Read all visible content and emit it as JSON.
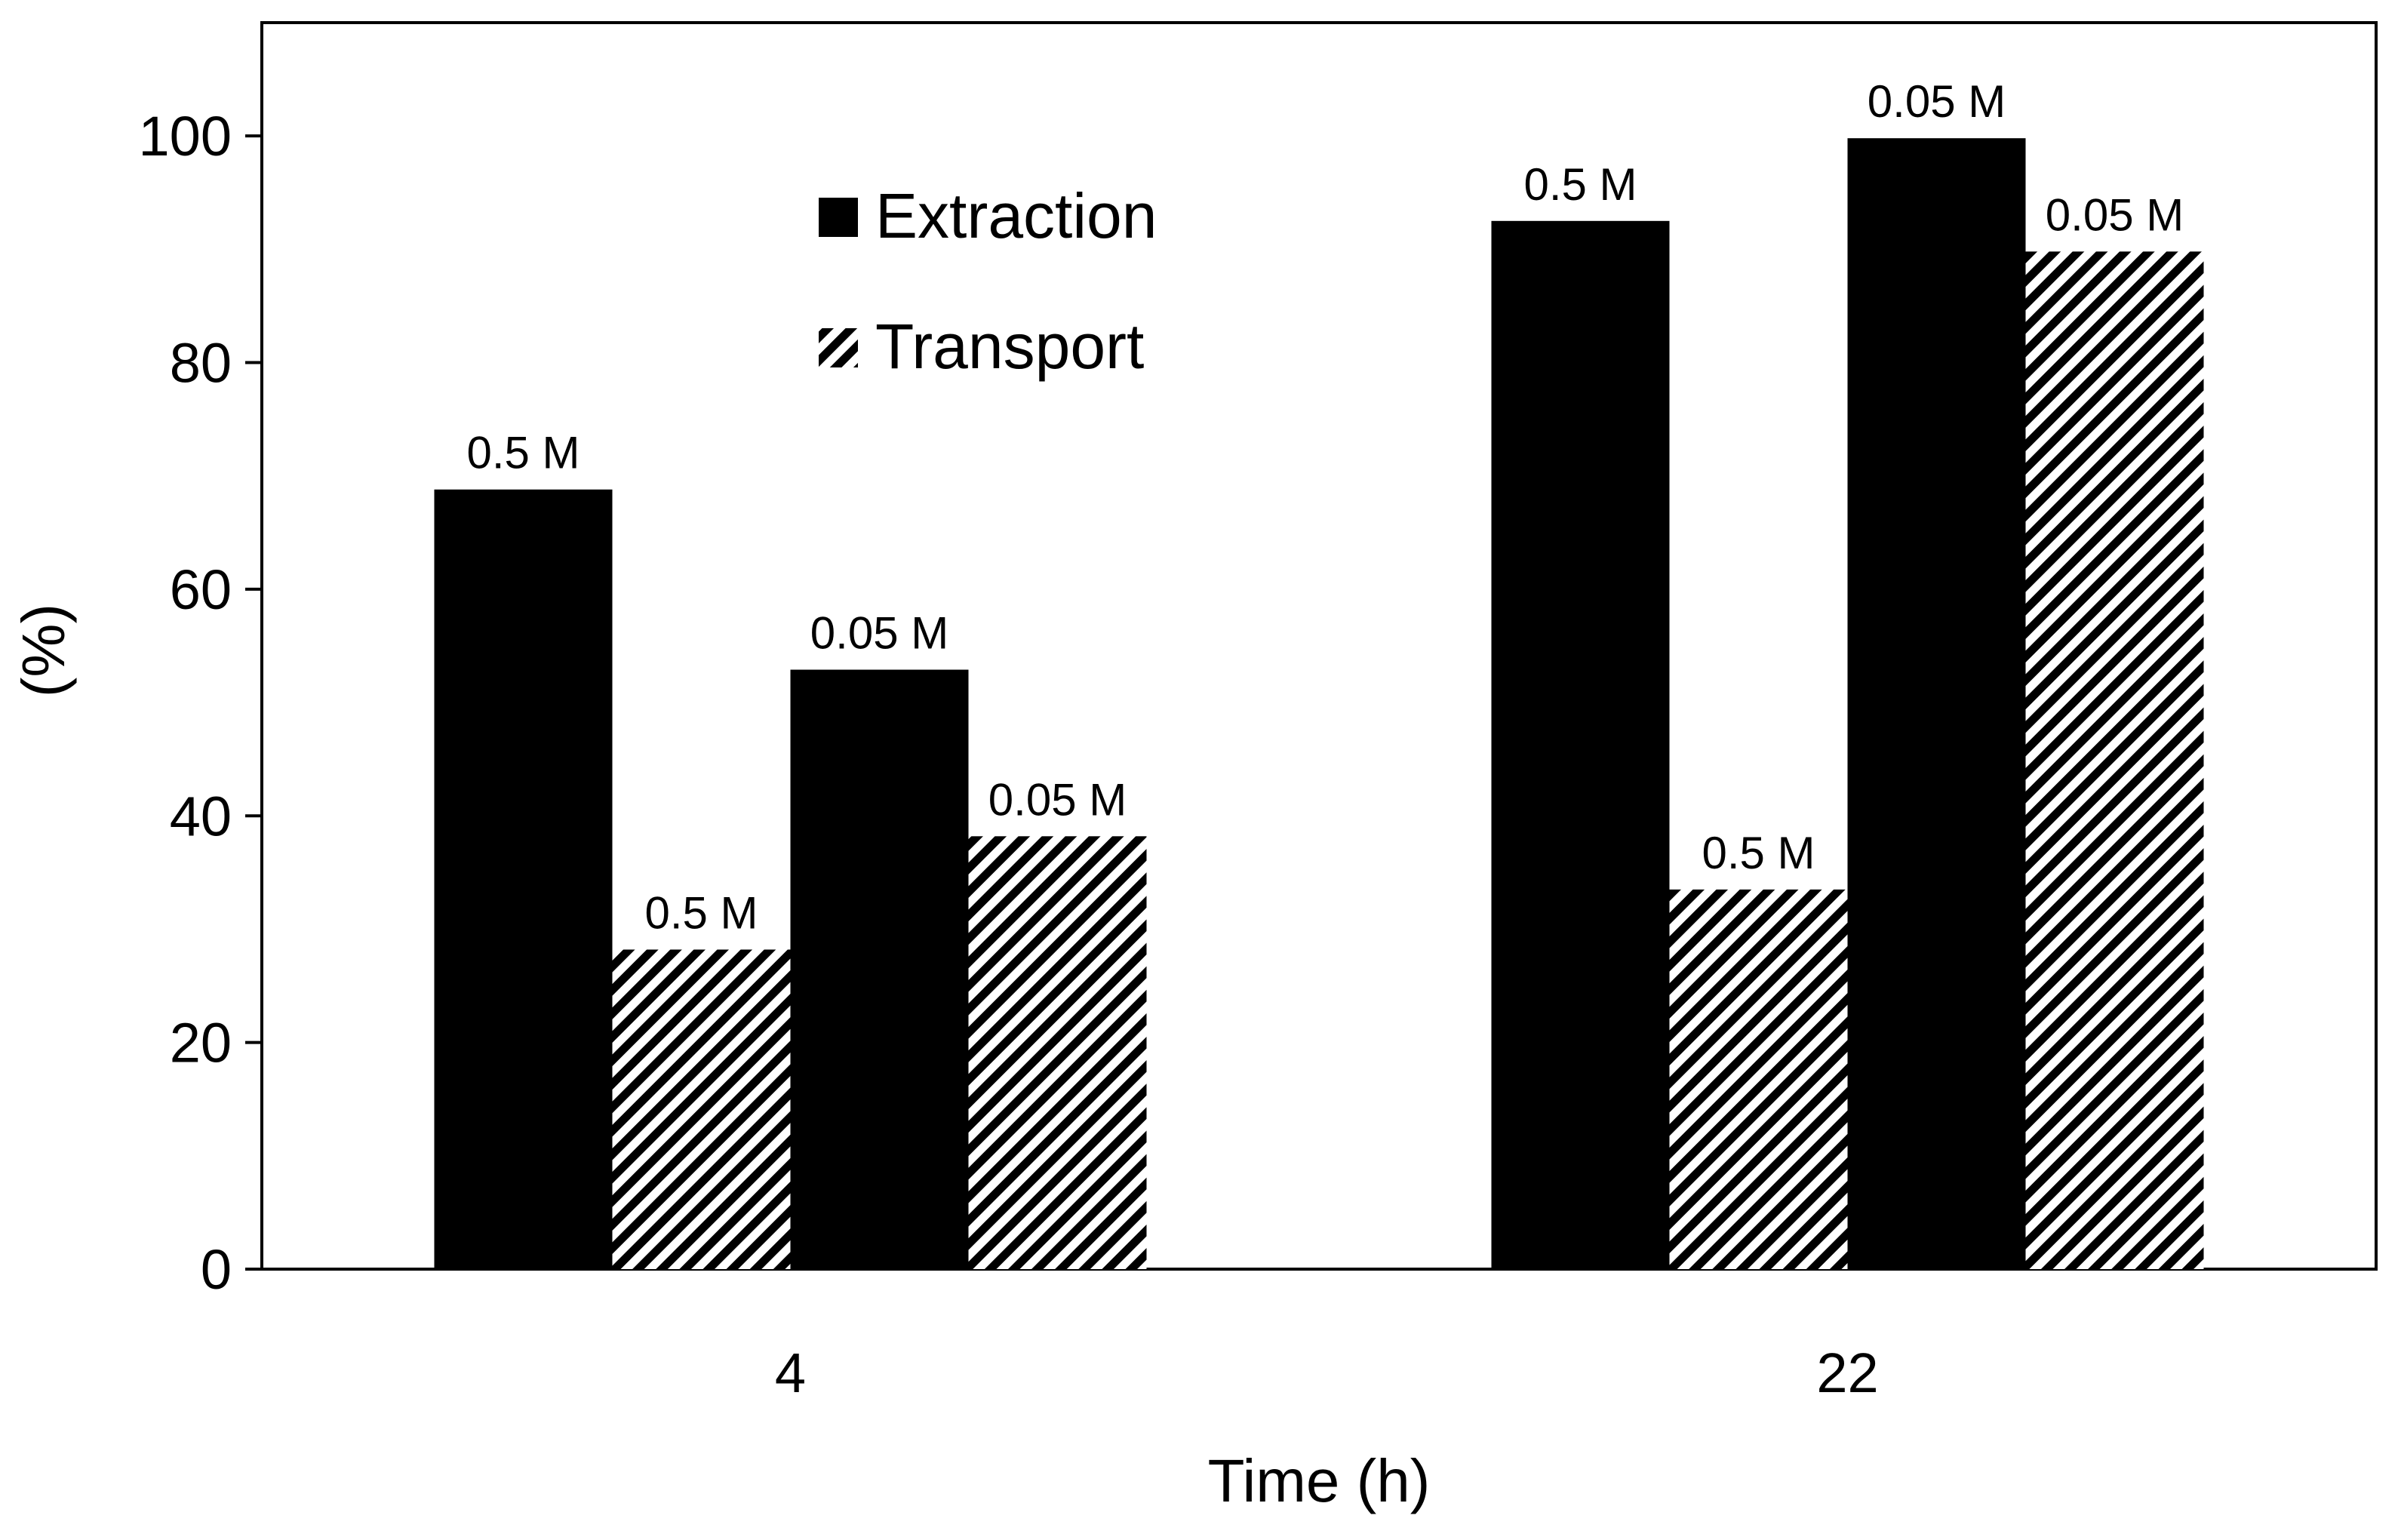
{
  "chart_data": {
    "type": "bar",
    "title": "",
    "xlabel": "Time (h)",
    "ylabel": "(%)",
    "ylim": [
      0,
      110
    ],
    "yticks": [
      0,
      20,
      40,
      60,
      80,
      100
    ],
    "grid": false,
    "legend_position": "top-center",
    "categories": [
      "4",
      "22"
    ],
    "series": [
      {
        "name": "Extraction",
        "concentration": "0.5 M",
        "style": "solid",
        "color": "#000000",
        "values": [
          68.8,
          92.5
        ],
        "labels": [
          "0.5 M",
          "0.5 M"
        ]
      },
      {
        "name": "Transport",
        "concentration": "0.5 M",
        "style": "hatched",
        "color": "#000000",
        "values": [
          28.2,
          33.5
        ],
        "labels": [
          "0.5 M",
          "0.5 M"
        ]
      },
      {
        "name": "Extraction",
        "concentration": "0.05 M",
        "style": "solid",
        "color": "#000000",
        "values": [
          52.9,
          99.8
        ],
        "labels": [
          "0.05 M",
          "0.05 M"
        ]
      },
      {
        "name": "Transport",
        "concentration": "0.05 M",
        "style": "hatched",
        "color": "#000000",
        "values": [
          38.2,
          89.8
        ],
        "labels": [
          "0.05 M",
          "0.05 M"
        ]
      }
    ],
    "legend": [
      {
        "label": "Extraction",
        "style": "solid"
      },
      {
        "label": "Transport",
        "style": "hatched"
      }
    ]
  }
}
